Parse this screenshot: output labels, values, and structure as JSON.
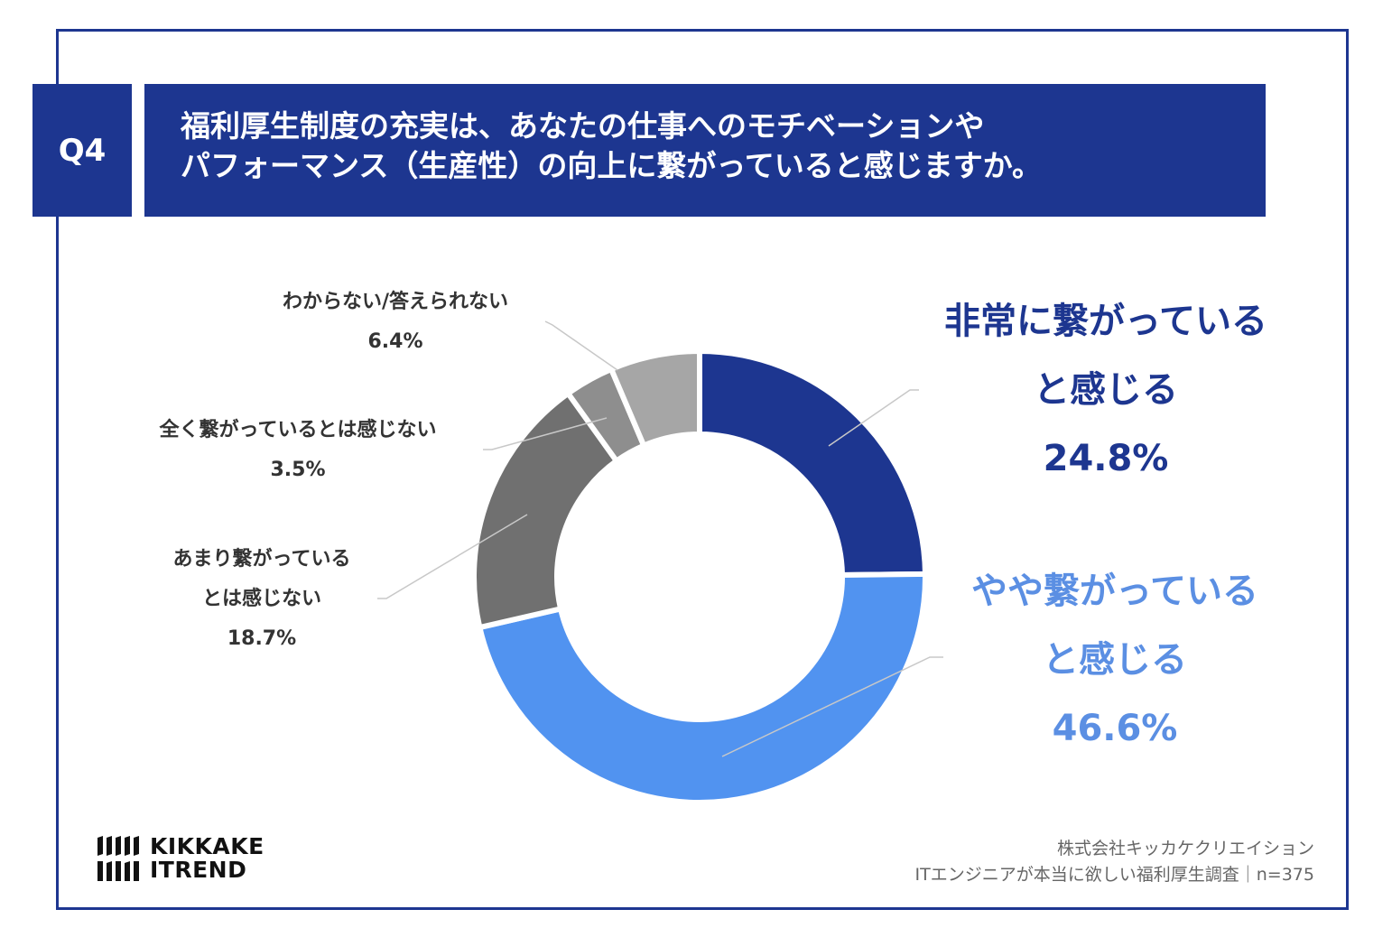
{
  "question": {
    "badge": "Q4",
    "line1": "福利厚生制度の充実は、あなたの仕事へのモチベーションや",
    "line2": "パフォーマンス（生産性）の向上に繋がっていると感じますか。"
  },
  "chart_data": {
    "type": "pie",
    "variant": "donut",
    "unit": "%",
    "slices": [
      {
        "label_lines": [
          "非常に繋がっている",
          "と感じる"
        ],
        "value": 24.8,
        "value_label": "24.8%",
        "color": "#1d3690"
      },
      {
        "label_lines": [
          "やや繋がっている",
          "と感じる"
        ],
        "value": 46.6,
        "value_label": "46.6%",
        "color": "#5193f0"
      },
      {
        "label_lines": [
          "あまり繋がっている",
          "とは感じない"
        ],
        "value": 18.7,
        "value_label": "18.7%",
        "color": "#707070"
      },
      {
        "label_lines": [
          "全く繋がっているとは感じない"
        ],
        "value": 3.5,
        "value_label": "3.5%",
        "color": "#8e8e8e"
      },
      {
        "label_lines": [
          "わからない/答えられない"
        ],
        "value": 6.4,
        "value_label": "6.4%",
        "color": "#a6a6a6"
      }
    ]
  },
  "logo": {
    "line1": "KIKKAKE",
    "line2": "ITREND"
  },
  "footer": {
    "line1": "株式会社キッカケクリエイション",
    "line2": "ITエンジニアが本当に欲しい福利厚生調査｜n=375"
  }
}
